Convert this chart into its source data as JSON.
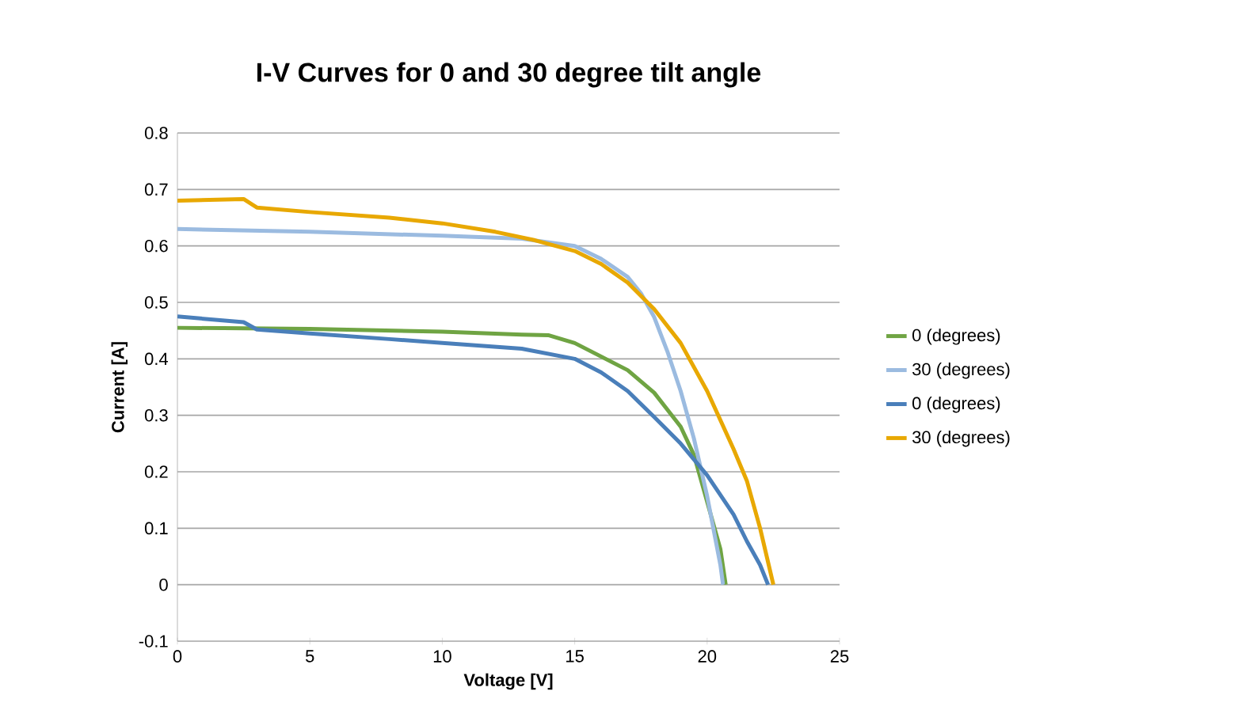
{
  "chart_data": {
    "type": "line",
    "title": "I-V Curves for 0 and 30 degree tilt angle",
    "xlabel": "Voltage [V]",
    "ylabel": "Current [A]",
    "xlim": [
      0,
      25
    ],
    "xticks": [
      0,
      5,
      10,
      15,
      20,
      25
    ],
    "ylim": [
      -0.1,
      0.8
    ],
    "yticks": [
      -0.1,
      0,
      0.1,
      0.2,
      0.3,
      0.4,
      0.5,
      0.6,
      0.7,
      0.8
    ],
    "grid": "y",
    "legend": "right",
    "marker": "none",
    "line_style": "solid",
    "series": [
      {
        "name": "0 (degrees)",
        "color": "#6fa443",
        "x": [
          0,
          5,
          10,
          13,
          14,
          15,
          17,
          18,
          19,
          19.5,
          20,
          20.5,
          20.7
        ],
        "values": [
          0.455,
          0.453,
          0.448,
          0.443,
          0.442,
          0.428,
          0.38,
          0.34,
          0.28,
          0.23,
          0.147,
          0.063,
          0
        ]
      },
      {
        "name": "30 (degrees)",
        "color": "#9bbbe0",
        "x": [
          0,
          5,
          10,
          13,
          15,
          16,
          17,
          17.5,
          18,
          18.5,
          19,
          19.5,
          20,
          20.5,
          20.6
        ],
        "values": [
          0.63,
          0.625,
          0.618,
          0.613,
          0.6,
          0.577,
          0.545,
          0.516,
          0.474,
          0.413,
          0.343,
          0.259,
          0.157,
          0.035,
          0
        ]
      },
      {
        "name": "0 (degrees)",
        "color": "#4a7fba",
        "x": [
          0,
          2.5,
          3,
          5,
          8,
          10,
          13,
          15,
          16,
          17,
          18,
          19,
          20,
          21,
          21.5,
          22,
          22.3
        ],
        "values": [
          0.475,
          0.465,
          0.452,
          0.445,
          0.435,
          0.428,
          0.418,
          0.4,
          0.376,
          0.343,
          0.297,
          0.25,
          0.194,
          0.124,
          0.077,
          0.035,
          0
        ]
      },
      {
        "name": "30 (degrees)",
        "color": "#e8a802",
        "x": [
          0,
          2.5,
          3,
          5,
          8,
          10,
          12,
          13.5,
          15,
          16,
          17,
          18,
          19,
          20,
          21,
          21.5,
          22,
          22.5
        ],
        "values": [
          0.68,
          0.683,
          0.668,
          0.66,
          0.65,
          0.64,
          0.625,
          0.61,
          0.591,
          0.568,
          0.535,
          0.488,
          0.428,
          0.343,
          0.24,
          0.184,
          0.1,
          0
        ]
      }
    ]
  }
}
